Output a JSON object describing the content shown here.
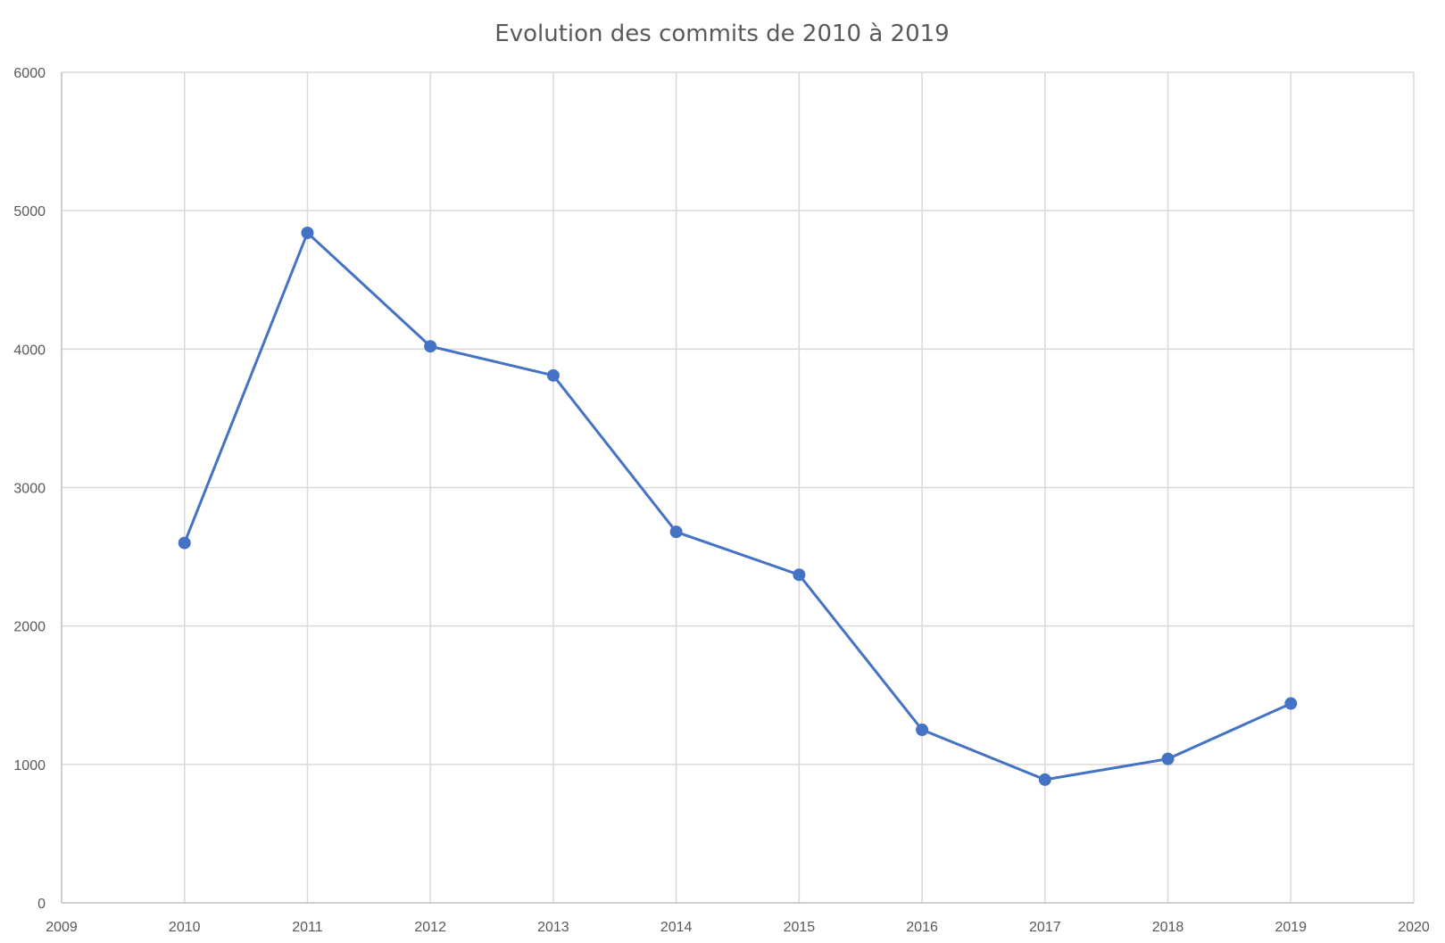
{
  "chart_data": {
    "type": "scatter",
    "title": "Evolution des commits de 2010 à 2019",
    "xlabel": "",
    "ylabel": "",
    "xlim": [
      2009,
      2020
    ],
    "ylim": [
      0,
      6000
    ],
    "x_ticks": [
      2009,
      2010,
      2011,
      2012,
      2013,
      2014,
      2015,
      2016,
      2017,
      2018,
      2019,
      2020
    ],
    "y_ticks": [
      0,
      1000,
      2000,
      3000,
      4000,
      5000,
      6000
    ],
    "grid": true,
    "legend": "none",
    "series": [
      {
        "color": "#4472c4",
        "x": [
          2010,
          2011,
          2012,
          2013,
          2014,
          2015,
          2016,
          2017,
          2018,
          2019
        ],
        "y": [
          2600,
          4840,
          4020,
          3810,
          2680,
          2370,
          1250,
          890,
          1040,
          1440
        ]
      }
    ]
  }
}
